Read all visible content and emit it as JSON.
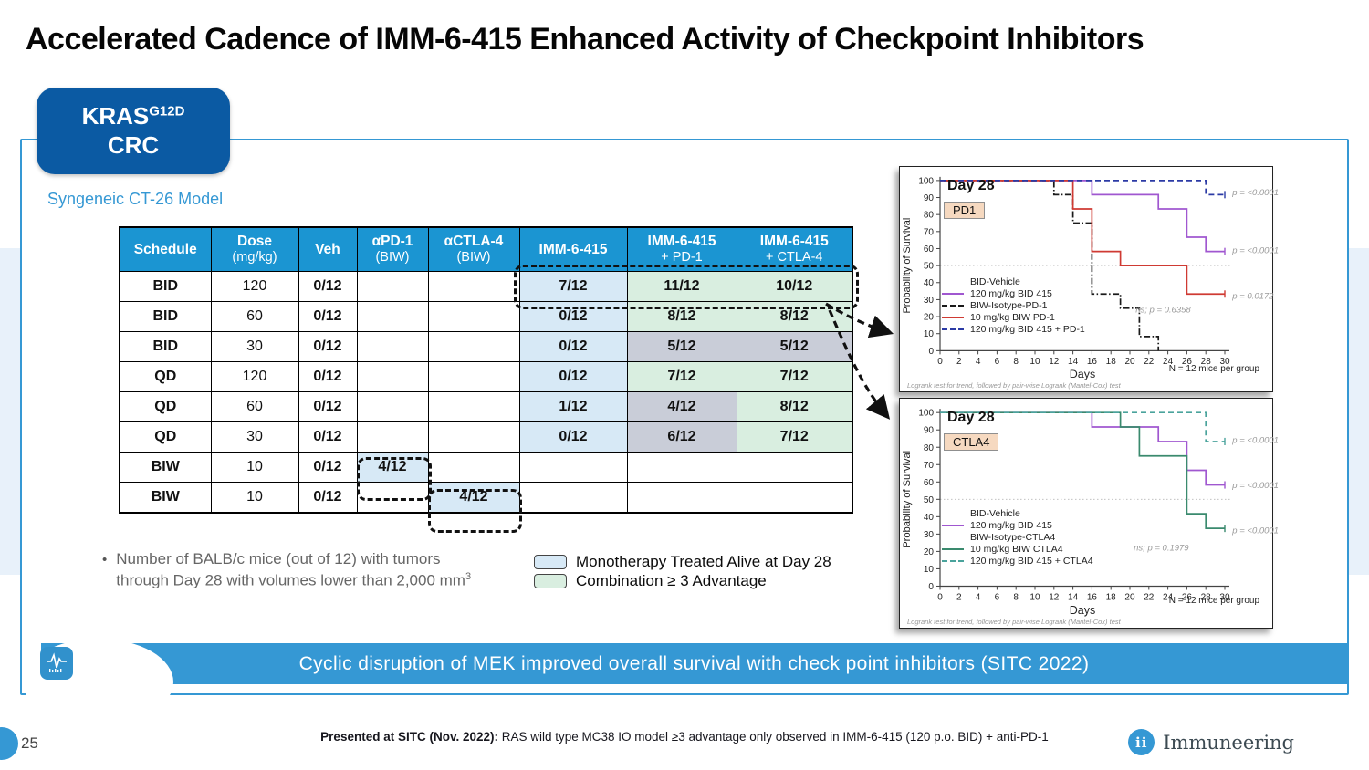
{
  "title": "Accelerated Cadence of IMM-6-415 Enhanced Activity of Checkpoint Inhibitors",
  "badge": {
    "gene": "KRAS",
    "mutation": "G12D",
    "indication": "CRC"
  },
  "model_label": "Syngeneic CT-26 Model",
  "colors": {
    "accent_blue": "#3598d4",
    "table_header_blue": "#1b95d2",
    "kras_badge_blue": "#0b5aa3",
    "monotherapy_cell": "#d7e9f6",
    "combination_cell": "#d9eee0",
    "neutral_cell": "#c9cdd8",
    "purple_series": "#a057d0",
    "red_series": "#cf3a33",
    "navy_dashed_series": "#2b3aa5",
    "green_series": "#3a8a6e",
    "teal_dashed_series": "#4aa39c"
  },
  "table": {
    "headers": [
      [
        "Schedule"
      ],
      [
        "Dose",
        "(mg/kg)"
      ],
      [
        "Veh"
      ],
      [
        "αPD-1",
        "(BIW)"
      ],
      [
        "αCTLA-4",
        "(BIW)"
      ],
      [
        "IMM-6-415"
      ],
      [
        "IMM-6-415",
        "+ PD-1"
      ],
      [
        "IMM-6-415",
        "+ CTLA-4"
      ]
    ],
    "rows": [
      {
        "cells": [
          "BID",
          "120",
          "0/12",
          "",
          "",
          "7/12",
          "11/12",
          "10/12"
        ],
        "styles": [
          "",
          "",
          "",
          "",
          "",
          "mono",
          "combo",
          "combo"
        ]
      },
      {
        "cells": [
          "BID",
          "60",
          "0/12",
          "",
          "",
          "0/12",
          "8/12",
          "8/12"
        ],
        "styles": [
          "",
          "",
          "",
          "",
          "",
          "mono",
          "combo",
          "combo"
        ]
      },
      {
        "cells": [
          "BID",
          "30",
          "0/12",
          "",
          "",
          "0/12",
          "5/12",
          "5/12"
        ],
        "styles": [
          "",
          "",
          "",
          "",
          "",
          "mono",
          "neutral",
          "neutral"
        ]
      },
      {
        "cells": [
          "QD",
          "120",
          "0/12",
          "",
          "",
          "0/12",
          "7/12",
          "7/12"
        ],
        "styles": [
          "",
          "",
          "",
          "",
          "",
          "mono",
          "combo",
          "combo"
        ]
      },
      {
        "cells": [
          "QD",
          "60",
          "0/12",
          "",
          "",
          "1/12",
          "4/12",
          "8/12"
        ],
        "styles": [
          "",
          "",
          "",
          "",
          "",
          "mono",
          "neutral",
          "combo"
        ]
      },
      {
        "cells": [
          "QD",
          "30",
          "0/12",
          "",
          "",
          "0/12",
          "6/12",
          "7/12"
        ],
        "styles": [
          "",
          "",
          "",
          "",
          "",
          "mono",
          "neutral",
          "combo"
        ]
      },
      {
        "cells": [
          "BIW",
          "10",
          "0/12",
          "4/12",
          "",
          "",
          "",
          ""
        ],
        "styles": [
          "",
          "",
          "",
          "mono",
          "",
          "",
          "",
          ""
        ]
      },
      {
        "cells": [
          "BIW",
          "10",
          "0/12",
          "",
          "4/12",
          "",
          "",
          ""
        ],
        "styles": [
          "",
          "",
          "",
          "",
          "mono",
          "",
          "",
          ""
        ]
      }
    ]
  },
  "note": {
    "bullet": "•",
    "line1": "Number of BALB/c mice (out of 12) with tumors",
    "line2": "through Day 28 with volumes lower than 2,000 mm",
    "sup": "3"
  },
  "legend": {
    "items": [
      {
        "label": "Monotherapy Treated Alive at Day 28",
        "color": "#d7e9f6"
      },
      {
        "label": "Combination ≥ 3 Advantage",
        "color": "#d9eee0"
      }
    ]
  },
  "banner": {
    "text": "Cyclic disruption of MEK improved overall survival with check point inhibitors (SITC 2022)"
  },
  "footer": {
    "bold": "Presented at SITC (Nov. 2022):",
    "text": " RAS wild type MC38 IO model ≥3 advantage only observed in IMM-6-415 (120 p.o. BID) + anti-PD-1",
    "page": "25",
    "logo_text": "Immuneering",
    "logo_glyph": "ii"
  },
  "chart_data": [
    {
      "type": "line",
      "title": "Day 28",
      "target": "PD1",
      "xlabel": "Days",
      "ylabel": "Probability of Survival",
      "xlim": [
        0,
        30
      ],
      "ylim": [
        0,
        100
      ],
      "x_tick_step": 2,
      "y_tick_step": 10,
      "reference_line": 50,
      "n_label": "N = 12 mice per group",
      "footnote": "Logrank test for trend, followed by pair-wise Logrank (Mantel-Cox) test",
      "series": [
        {
          "name": "BID-Vehicle",
          "color": "#333333",
          "points": []
        },
        {
          "name": "120 mg/kg BID 415",
          "color": "#a057d0",
          "points": [
            [
              0,
              100
            ],
            [
              16,
              100
            ],
            [
              16,
              91.7
            ],
            [
              23,
              91.7
            ],
            [
              23,
              83.3
            ],
            [
              26,
              83.3
            ],
            [
              26,
              66.7
            ],
            [
              28,
              66.7
            ],
            [
              28,
              58.3
            ],
            [
              30,
              58.3
            ]
          ]
        },
        {
          "name": "BIW-Isotype-PD-1",
          "color": "#1a1a1a",
          "dash": "1.5 2.5 7 2.5",
          "points": [
            [
              0,
              100
            ],
            [
              12,
              100
            ],
            [
              12,
              91.7
            ],
            [
              14,
              91.7
            ],
            [
              14,
              75
            ],
            [
              16,
              75
            ],
            [
              16,
              33.3
            ],
            [
              19,
              33.3
            ],
            [
              19,
              25
            ],
            [
              21,
              25
            ],
            [
              21,
              8.3
            ],
            [
              23,
              8.3
            ],
            [
              23,
              0
            ]
          ]
        },
        {
          "name": "10 mg/kg BIW PD-1",
          "color": "#cf3a33",
          "points": [
            [
              0,
              100
            ],
            [
              14,
              100
            ],
            [
              14,
              83.3
            ],
            [
              16,
              83.3
            ],
            [
              16,
              58.3
            ],
            [
              19,
              58.3
            ],
            [
              19,
              50
            ],
            [
              26,
              50
            ],
            [
              26,
              33.3
            ],
            [
              30,
              33.3
            ]
          ]
        },
        {
          "name": "120 mg/kg BID 415 + PD-1",
          "color": "#2b3aa5",
          "dash": "6 4",
          "points": [
            [
              0,
              100
            ],
            [
              28,
              100
            ],
            [
              28,
              91.7
            ],
            [
              30,
              91.7
            ]
          ]
        }
      ],
      "annotations": [
        {
          "text": "p = <0.0001",
          "day": 30.8,
          "pct": 93
        },
        {
          "text": "p = <0.0001",
          "day": 30.8,
          "pct": 59
        },
        {
          "text": "p = 0.0172",
          "day": 30.8,
          "pct": 32
        },
        {
          "text": "ns; p = 0.6358",
          "day": 20.6,
          "pct": 24
        }
      ]
    },
    {
      "type": "line",
      "title": "Day 28",
      "target": "CTLA4",
      "xlabel": "Days",
      "ylabel": "Probability of Survival",
      "xlim": [
        0,
        30
      ],
      "ylim": [
        0,
        100
      ],
      "x_tick_step": 2,
      "y_tick_step": 10,
      "reference_line": 50,
      "n_label": "N = 12 mice per group",
      "footnote": "Logrank test for trend, followed by pair-wise Logrank (Mantel-Cox) test",
      "series": [
        {
          "name": "BID-Vehicle",
          "color": "#333333",
          "points": []
        },
        {
          "name": "120 mg/kg BID 415",
          "color": "#a057d0",
          "points": [
            [
              0,
              100
            ],
            [
              16,
              100
            ],
            [
              16,
              91.7
            ],
            [
              23,
              91.7
            ],
            [
              23,
              83.3
            ],
            [
              26,
              83.3
            ],
            [
              26,
              66.7
            ],
            [
              28,
              66.7
            ],
            [
              28,
              58.3
            ],
            [
              30,
              58.3
            ]
          ]
        },
        {
          "name": "BIW-Isotype-CTLA4",
          "color": "#1a1a1a",
          "points": []
        },
        {
          "name": "10 mg/kg BIW CTLA4",
          "color": "#3a8a6e",
          "points": [
            [
              0,
              100
            ],
            [
              19,
              100
            ],
            [
              19,
              91.7
            ],
            [
              21,
              91.7
            ],
            [
              21,
              75
            ],
            [
              26,
              75
            ],
            [
              26,
              41.7
            ],
            [
              28,
              41.7
            ],
            [
              28,
              33.3
            ],
            [
              30,
              33.3
            ]
          ]
        },
        {
          "name": "120 mg/kg BID 415 + CTLA4",
          "color": "#4aa39c",
          "dash": "6 4",
          "points": [
            [
              0,
              100
            ],
            [
              28,
              100
            ],
            [
              28,
              83.3
            ],
            [
              30,
              83.3
            ]
          ]
        }
      ],
      "annotations": [
        {
          "text": "p = <0.0001",
          "day": 30.8,
          "pct": 84
        },
        {
          "text": "p = <0.0001",
          "day": 30.8,
          "pct": 58
        },
        {
          "text": "p = <0.0001",
          "day": 30.8,
          "pct": 32
        },
        {
          "text": "ns; p = 0.1979",
          "day": 20.4,
          "pct": 22
        }
      ]
    }
  ]
}
